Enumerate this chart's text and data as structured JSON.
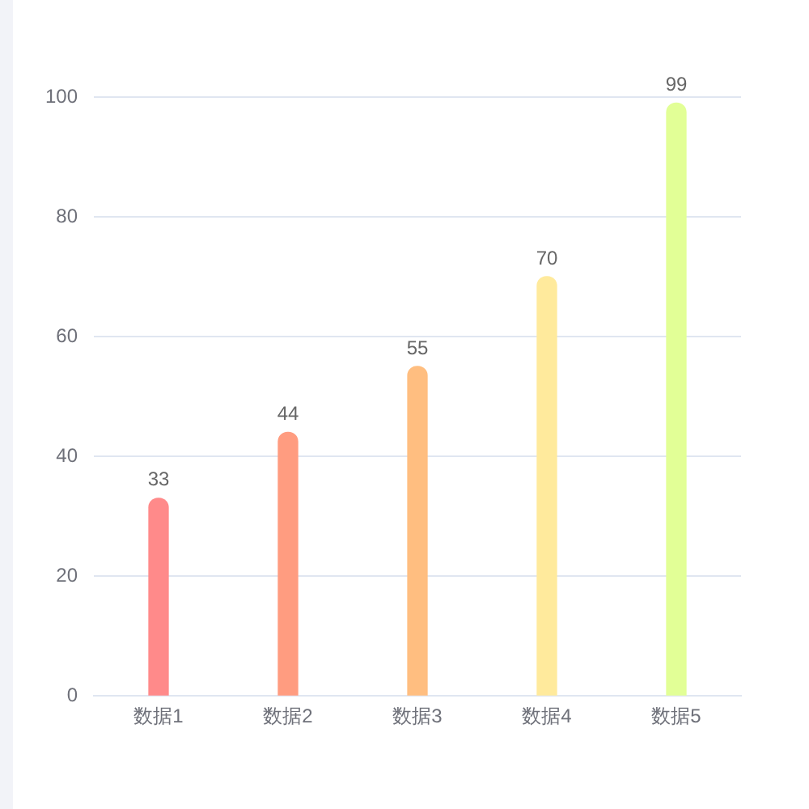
{
  "chart_data": {
    "type": "bar",
    "categories": [
      "数据1",
      "数据2",
      "数据3",
      "数据4",
      "数据5"
    ],
    "values": [
      33,
      44,
      55,
      70,
      99
    ],
    "colors": [
      "#ff8a8a",
      "#ff9c80",
      "#ffbe80",
      "#ffea9c",
      "#e2ff96"
    ],
    "ylim": [
      0,
      100
    ],
    "yticks": [
      0,
      20,
      40,
      60,
      80,
      100
    ],
    "grid": "y",
    "data_labels": true,
    "legend": false
  }
}
